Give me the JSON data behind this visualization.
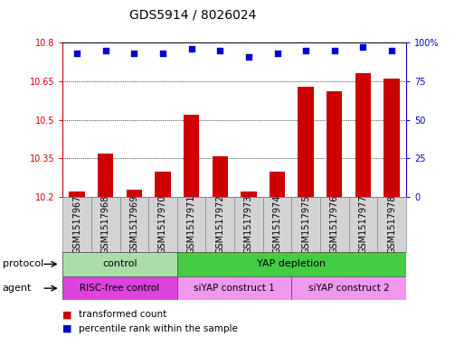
{
  "title": "GDS5914 / 8026024",
  "samples": [
    "GSM1517967",
    "GSM1517968",
    "GSM1517969",
    "GSM1517970",
    "GSM1517971",
    "GSM1517972",
    "GSM1517973",
    "GSM1517974",
    "GSM1517975",
    "GSM1517976",
    "GSM1517977",
    "GSM1517978"
  ],
  "bar_values": [
    10.22,
    10.37,
    10.23,
    10.3,
    10.52,
    10.36,
    10.22,
    10.3,
    10.63,
    10.61,
    10.68,
    10.66
  ],
  "percentile_values": [
    93,
    95,
    93,
    93,
    96,
    95,
    91,
    93,
    95,
    95,
    97,
    95
  ],
  "bar_color": "#cc0000",
  "dot_color": "#0000cc",
  "ylim_left": [
    10.2,
    10.8
  ],
  "ylim_right": [
    0,
    100
  ],
  "yticks_left": [
    10.2,
    10.35,
    10.5,
    10.65,
    10.8
  ],
  "yticks_right": [
    0,
    25,
    50,
    75,
    100
  ],
  "ytick_labels_left": [
    "10.2",
    "10.35",
    "10.5",
    "10.65",
    "10.8"
  ],
  "ytick_labels_right": [
    "0",
    "25",
    "50",
    "75",
    "100%"
  ],
  "background_color": "#ffffff",
  "plot_bg_color": "#ffffff",
  "xticklabel_bg": "#d3d3d3",
  "protocol_row": {
    "label": "protocol",
    "groups": [
      {
        "label": "control",
        "start": 0,
        "end": 4,
        "color": "#aaddaa"
      },
      {
        "label": "YAP depletion",
        "start": 4,
        "end": 12,
        "color": "#44cc44"
      }
    ]
  },
  "agent_row": {
    "label": "agent",
    "groups": [
      {
        "label": "RISC-free control",
        "start": 0,
        "end": 4,
        "color": "#dd44dd"
      },
      {
        "label": "siYAP construct 1",
        "start": 4,
        "end": 8,
        "color": "#ee99ee"
      },
      {
        "label": "siYAP construct 2",
        "start": 8,
        "end": 12,
        "color": "#ee99ee"
      }
    ]
  },
  "legend_items": [
    {
      "label": "transformed count",
      "color": "#cc0000"
    },
    {
      "label": "percentile rank within the sample",
      "color": "#0000cc"
    }
  ],
  "title_fontsize": 10,
  "tick_fontsize": 7,
  "label_fontsize": 8,
  "bar_width": 0.55
}
